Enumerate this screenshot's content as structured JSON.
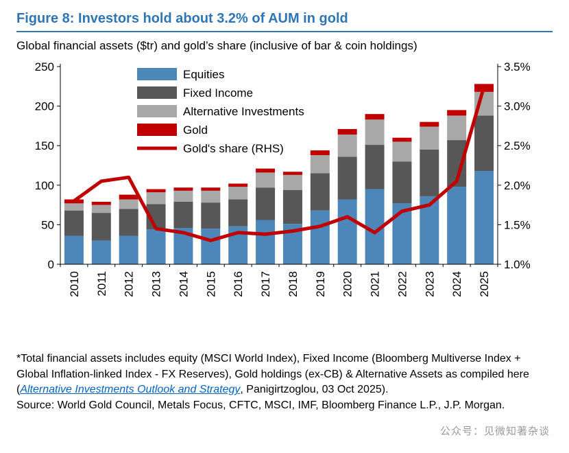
{
  "figure": {
    "title": "Figure 8: Investors hold about 3.2% of AUM in gold",
    "subtitle": "Global financial assets ($tr) and gold’s share (inclusive of bar & coin holdings)"
  },
  "chart_data": {
    "type": "bar",
    "stacked": true,
    "categories": [
      "2010",
      "2011",
      "2012",
      "2013",
      "2014",
      "2015",
      "2016",
      "2017",
      "2018",
      "2019",
      "2020",
      "2021",
      "2022",
      "2023",
      "2024",
      "2025"
    ],
    "series": [
      {
        "name": "Equities",
        "kind": "bar",
        "color": "#4d86b9",
        "values": [
          36,
          30,
          36,
          44,
          46,
          45,
          48,
          56,
          51,
          68,
          82,
          95,
          77,
          86,
          98,
          118
        ]
      },
      {
        "name": "Fixed Income",
        "kind": "bar",
        "color": "#575757",
        "values": [
          32,
          35,
          34,
          32,
          33,
          33,
          34,
          41,
          43,
          47,
          54,
          56,
          53,
          59,
          59,
          70
        ]
      },
      {
        "name": "Alternative Investments",
        "kind": "bar",
        "color": "#a8a8a8",
        "values": [
          9,
          10,
          12,
          15,
          14,
          15,
          16,
          19,
          19,
          23,
          28,
          32,
          25,
          29,
          31,
          30
        ]
      },
      {
        "name": "Gold",
        "kind": "bar",
        "color": "#c00000",
        "values": [
          5,
          4,
          6,
          4,
          4,
          4,
          4,
          5,
          4,
          6,
          7,
          7,
          5,
          6,
          7,
          10
        ]
      },
      {
        "name": "Gold's share (RHS)",
        "kind": "line",
        "axis": "right",
        "color": "#c00000",
        "values": [
          1.8,
          2.05,
          2.1,
          1.45,
          1.4,
          1.3,
          1.4,
          1.38,
          1.42,
          1.48,
          1.6,
          1.4,
          1.67,
          1.75,
          2.05,
          3.25
        ]
      }
    ],
    "left_axis": {
      "min": 0,
      "max": 250,
      "ticks": [
        "0",
        "50",
        "100",
        "150",
        "200",
        "250"
      ]
    },
    "right_axis": {
      "min": 1.0,
      "max": 3.5,
      "ticks": [
        "1.0%",
        "1.5%",
        "2.0%",
        "2.5%",
        "3.0%",
        "3.5%"
      ]
    },
    "legend_position": "top-left-inside",
    "grid": false
  },
  "footnote": {
    "pre_link": "*Total financial assets includes equity (MSCI World Index), Fixed Income (Bloomberg Multiverse Index + Global Inflation-linked Index - FX Reserves), Gold holdings (ex-CB) & Alternative Assets as compiled here (",
    "link_text": "Alternative Investments Outlook and Strategy",
    "post_link": ", Panigirtzoglou, 03 Oct 2025).",
    "source": "Source: World Gold Council, Metals Focus, CFTC, MSCI, IMF, Bloomberg Finance L.P., J.P. Morgan."
  },
  "watermark": "公众号：见微知著杂谈",
  "colors": {
    "title": "#2e75b6",
    "link": "#0563c1",
    "axis": "#000000",
    "watermark": "#9a9a9a"
  }
}
